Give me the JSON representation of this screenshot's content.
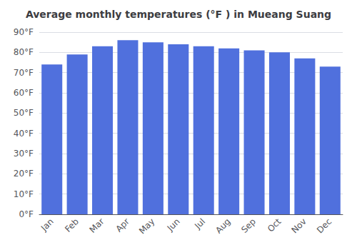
{
  "chart_data": {
    "type": "bar",
    "title": "Average monthly temperatures (°F ) in Mueang Suang",
    "categories": [
      "Jan",
      "Feb",
      "Mar",
      "Apr",
      "May",
      "Jun",
      "Jul",
      "Aug",
      "Sep",
      "Oct",
      "Nov",
      "Dec"
    ],
    "values": [
      74,
      79,
      83,
      86,
      85,
      84,
      83,
      82,
      81,
      80,
      77,
      73
    ],
    "ylim": [
      0,
      90
    ],
    "yticks": [
      {
        "value": 0,
        "label": "0°F"
      },
      {
        "value": 10,
        "label": "10°F"
      },
      {
        "value": 20,
        "label": "20°F"
      },
      {
        "value": 30,
        "label": "30°F"
      },
      {
        "value": 40,
        "label": "40°F"
      },
      {
        "value": 50,
        "label": "50°F"
      },
      {
        "value": 60,
        "label": "60°F"
      },
      {
        "value": 70,
        "label": "70°F"
      },
      {
        "value": 80,
        "label": "80°F"
      },
      {
        "value": 90,
        "label": "90°F"
      }
    ],
    "grid": true
  }
}
